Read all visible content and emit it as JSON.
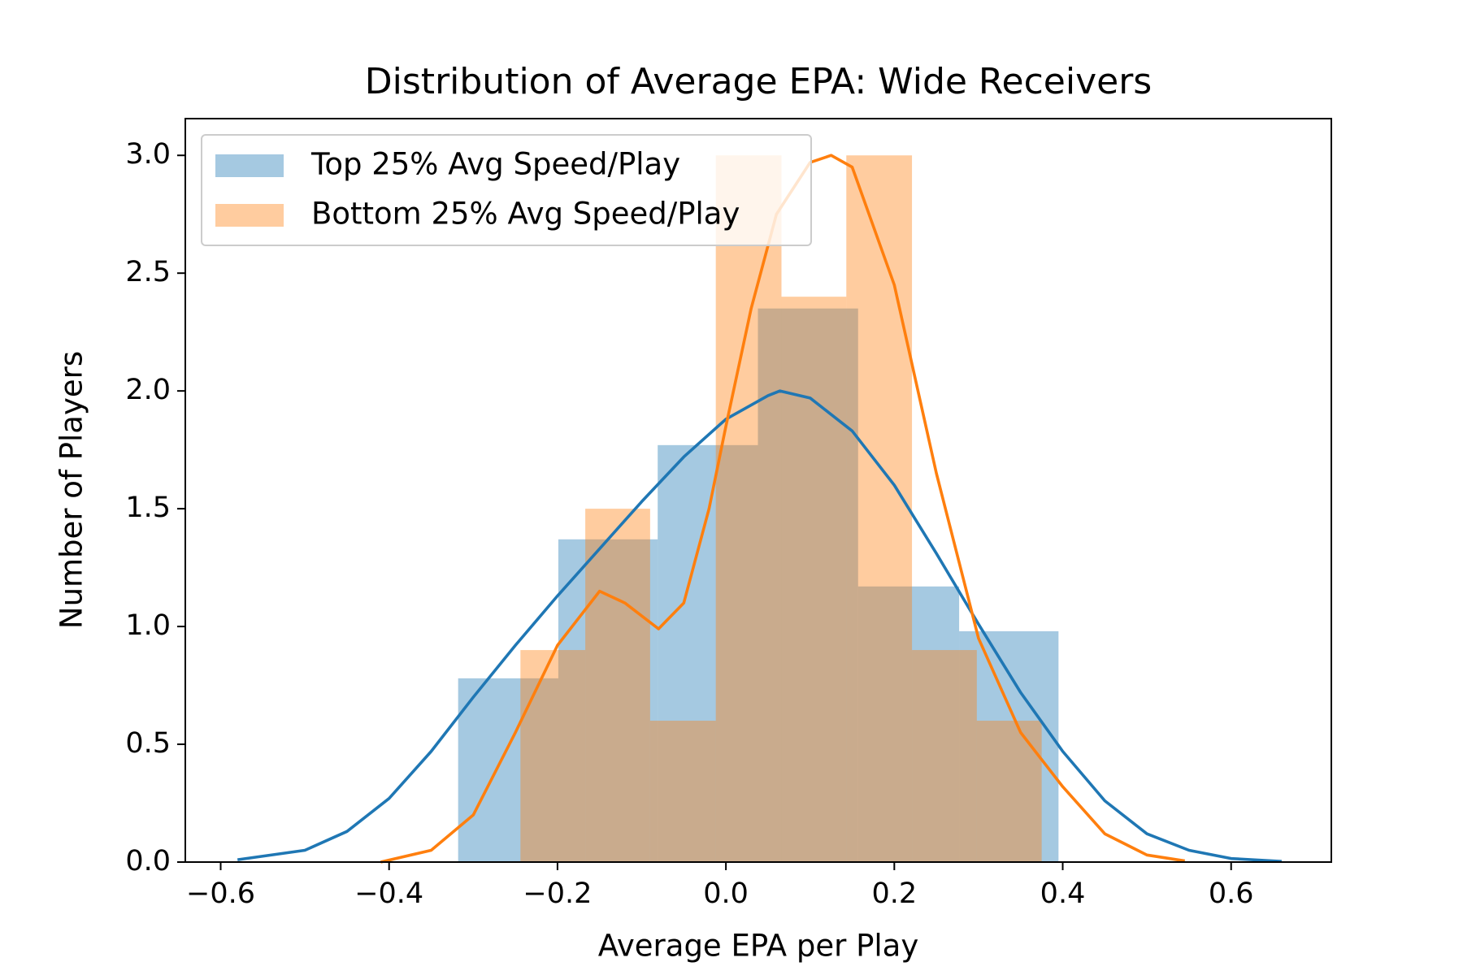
{
  "chart_data": {
    "type": "histogram",
    "title": "Distribution of Average EPA: Wide Receivers",
    "xlabel": "Average EPA per Play",
    "ylabel": "Number of Players",
    "xlim": [
      -0.642,
      0.719
    ],
    "ylim": [
      0,
      3.156
    ],
    "xticks": [
      {
        "value": -0.6,
        "label": "−0.6"
      },
      {
        "value": -0.4,
        "label": "−0.4"
      },
      {
        "value": -0.2,
        "label": "−0.2"
      },
      {
        "value": 0,
        "label": "0.0"
      },
      {
        "value": 0.2,
        "label": "0.2"
      },
      {
        "value": 0.4,
        "label": "0.4"
      },
      {
        "value": 0.6,
        "label": "0.6"
      }
    ],
    "yticks": [
      {
        "value": 0,
        "label": "0.0"
      },
      0.5,
      {
        "value": 1,
        "label": "1.0"
      },
      1.5,
      {
        "value": 2,
        "label": "2.0"
      },
      2.5,
      {
        "value": 3,
        "label": "3.0"
      }
    ],
    "legend": "upper left",
    "series": [
      {
        "name": "Top 25% Avg Speed/Play",
        "color": "#1f77b4",
        "bins": [
          -0.318,
          -0.199,
          -0.081,
          0.038,
          0.157,
          0.277,
          0.395
        ],
        "values": [
          0.78,
          1.37,
          1.77,
          2.35,
          1.17,
          0.98
        ],
        "kde_x": [
          -0.58,
          -0.5,
          -0.45,
          -0.4,
          -0.35,
          -0.3,
          -0.25,
          -0.2,
          -0.15,
          -0.1,
          -0.05,
          0.0,
          0.05,
          0.064,
          0.1,
          0.15,
          0.2,
          0.25,
          0.3,
          0.35,
          0.4,
          0.45,
          0.5,
          0.55,
          0.6,
          0.66
        ],
        "kde_values": [
          0.01,
          0.05,
          0.13,
          0.27,
          0.47,
          0.7,
          0.92,
          1.13,
          1.33,
          1.53,
          1.72,
          1.88,
          1.98,
          2.0,
          1.97,
          1.83,
          1.6,
          1.31,
          1.01,
          0.72,
          0.47,
          0.26,
          0.12,
          0.05,
          0.015,
          0.003
        ]
      },
      {
        "name": "Bottom 25% Avg Speed/Play",
        "color": "#ff7f0e",
        "bins": [
          -0.244,
          -0.167,
          -0.09,
          -0.012,
          0.066,
          0.143,
          0.221,
          0.298,
          0.375
        ],
        "values": [
          0.9,
          1.5,
          0.6,
          3.0,
          2.4,
          3.0,
          0.9,
          0.6
        ],
        "kde_x": [
          -0.41,
          -0.35,
          -0.3,
          -0.25,
          -0.2,
          -0.15,
          -0.12,
          -0.08,
          -0.05,
          -0.02,
          0.0,
          0.03,
          0.06,
          0.1,
          0.125,
          0.15,
          0.2,
          0.25,
          0.3,
          0.35,
          0.4,
          0.45,
          0.5,
          0.545
        ],
        "kde_values": [
          0.0,
          0.05,
          0.2,
          0.55,
          0.92,
          1.15,
          1.1,
          0.99,
          1.1,
          1.5,
          1.85,
          2.35,
          2.75,
          2.97,
          3.0,
          2.95,
          2.45,
          1.65,
          0.95,
          0.55,
          0.32,
          0.12,
          0.03,
          0.005
        ]
      }
    ]
  }
}
